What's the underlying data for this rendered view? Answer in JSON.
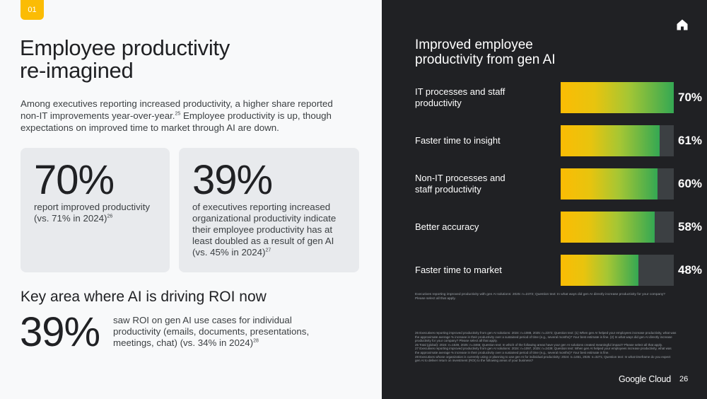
{
  "left": {
    "section_tag": "01",
    "title_line1": "Employee productivity",
    "title_line2": "re-imagined",
    "intro_text": "Among executives reporting increased productivity, a higher share reported non-IT improvements year-over-year.",
    "intro_ref": "25",
    "intro_text2": " Employee productivity is up, though expectations on improved time to market through AI are down.",
    "card1": {
      "big_stat": "70%",
      "text": "report improved productivity (vs. 71% in 2024)",
      "ref": "26"
    },
    "card2": {
      "big_stat": "39%",
      "text": "of executives reporting increased organizational productivity indicate their employee productivity has at least doubled as a result of gen AI (vs. 45% in 2024)",
      "ref": "27"
    },
    "roi_title": "Key area where AI is driving ROI now",
    "roi_stat": "39%",
    "roi_text": "saw ROI on gen AI use cases for individual productivity (emails, documents, presentations, meetings, chat) (vs. 34% in 2024)",
    "roi_ref": "28"
  },
  "right": {
    "home_icon": "home-icon",
    "chart_title_line1": "Improved employee",
    "chart_title_line2": "productivity from gen AI",
    "chart_note": "Executives reporting improved productivity with gen AI solutions: 2025: n=2372; Question text: In what ways did gen AI directly increase productivity for your company? Please select all that apply.",
    "footnotes": [
      "26 Executives reporting improved productivity from gen AI solutions: 2024: n=1088, 2025: n=2372; Question text: (1) When gen AI helped your employees increase productivity, what was the approximate average % increase in their productivity over a sustained period of time (e.g., several months)? Your best estimate is fine. (2) In what ways did gen AI directly increase productivity for your company? Please select all that apply.",
      "25 Total (global): 2024: n=1539, 2025: n=3466; Question text: In which of the following areas have your gen AI solutions created meaningful impact? Please select all that apply.",
      "27 Executives reporting improved productivity from gen AI solutions: 2024: n=1097, 2025: n=2439; Question text: When gen AI helped your employees increase productivity, what was the approximate average % increase in their productivity over a sustained period of time (e.g., several months)? Your best estimate is fine.",
      "28 Executives whose organization is currently using or planning to use gen AI for individual productivity: 2024: n=1451, 2025: n=3271; Question text: In what timeframe do you expect gen AI to deliver return on investment (ROI) to the following areas of your business?"
    ],
    "logo": "Google Cloud",
    "page_number": "26"
  },
  "chart_data": {
    "type": "bar",
    "title": "Improved employee productivity from gen AI",
    "categories": [
      "IT processes and staff productivity",
      "Faster time to insight",
      "Non-IT processes and staff productivity",
      "Better accuracy",
      "Faster time to market"
    ],
    "values": [
      70,
      61,
      60,
      58,
      48
    ],
    "value_labels": [
      "70%",
      "61%",
      "60%",
      "58%",
      "48%"
    ],
    "xlim": [
      0,
      100
    ],
    "orientation": "horizontal",
    "grid": false,
    "legend": "none",
    "colors": {
      "gradient_start": "#fbbc04",
      "gradient_end": "#34a853",
      "track": "#3c4043"
    }
  }
}
